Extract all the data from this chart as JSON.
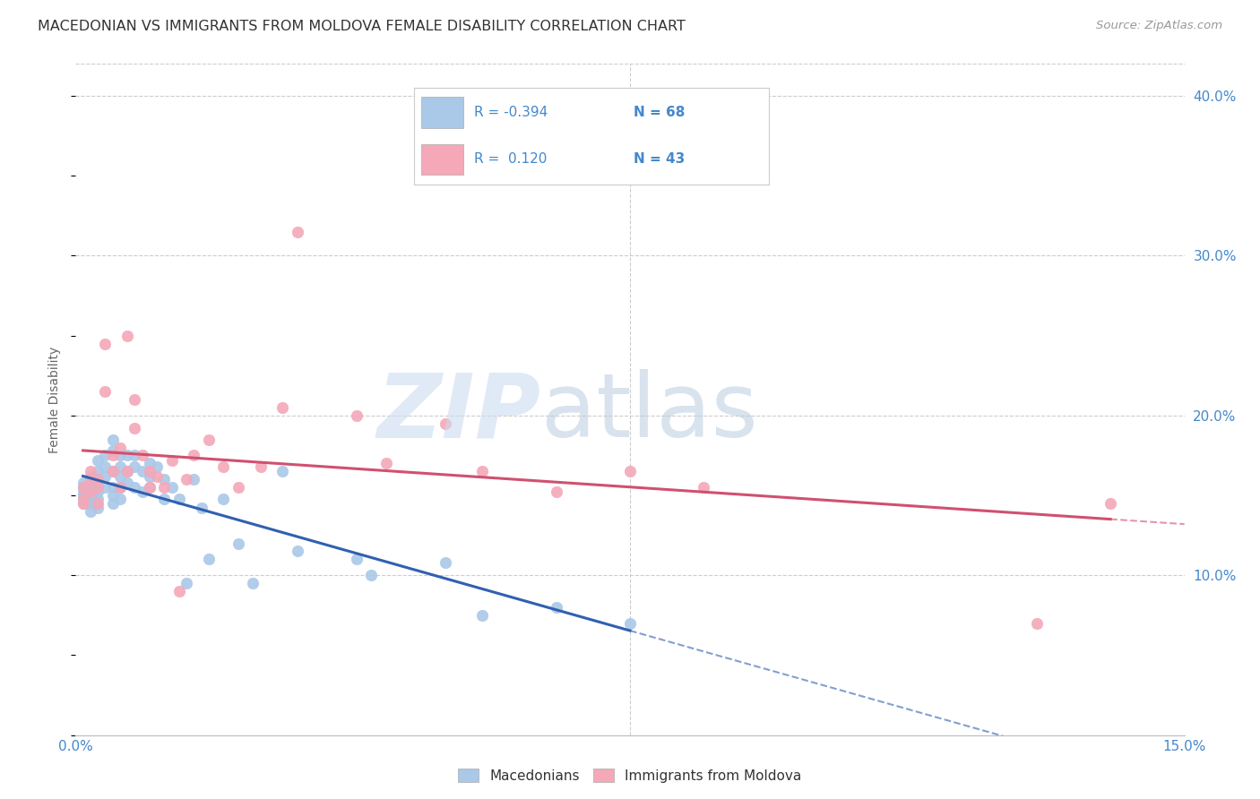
{
  "title": "MACEDONIAN VS IMMIGRANTS FROM MOLDOVA FEMALE DISABILITY CORRELATION CHART",
  "source": "Source: ZipAtlas.com",
  "ylabel": "Female Disability",
  "xlim": [
    0.0,
    0.15
  ],
  "ylim": [
    0.0,
    0.42
  ],
  "macedonian_color": "#aac8e8",
  "moldova_color": "#f4a8b8",
  "line1_color": "#3060b0",
  "line2_color": "#d05070",
  "background_color": "#ffffff",
  "grid_color": "#cccccc",
  "mac_r": "-0.394",
  "mac_n": "68",
  "mol_r": "0.120",
  "mol_n": "43",
  "macedonians_x": [
    0.001,
    0.001,
    0.001,
    0.001,
    0.001,
    0.001,
    0.002,
    0.002,
    0.002,
    0.002,
    0.002,
    0.002,
    0.002,
    0.002,
    0.002,
    0.003,
    0.003,
    0.003,
    0.003,
    0.003,
    0.003,
    0.003,
    0.004,
    0.004,
    0.004,
    0.004,
    0.005,
    0.005,
    0.005,
    0.005,
    0.005,
    0.005,
    0.006,
    0.006,
    0.006,
    0.006,
    0.006,
    0.007,
    0.007,
    0.007,
    0.008,
    0.008,
    0.008,
    0.009,
    0.009,
    0.01,
    0.01,
    0.01,
    0.011,
    0.012,
    0.012,
    0.013,
    0.014,
    0.015,
    0.016,
    0.017,
    0.018,
    0.02,
    0.022,
    0.024,
    0.028,
    0.03,
    0.038,
    0.04,
    0.05,
    0.055,
    0.065,
    0.075
  ],
  "macedonians_y": [
    0.15,
    0.148,
    0.145,
    0.155,
    0.152,
    0.158,
    0.145,
    0.148,
    0.155,
    0.16,
    0.162,
    0.152,
    0.145,
    0.14,
    0.155,
    0.165,
    0.155,
    0.148,
    0.142,
    0.158,
    0.172,
    0.152,
    0.175,
    0.168,
    0.162,
    0.155,
    0.185,
    0.178,
    0.165,
    0.155,
    0.15,
    0.145,
    0.175,
    0.168,
    0.162,
    0.155,
    0.148,
    0.175,
    0.165,
    0.158,
    0.175,
    0.168,
    0.155,
    0.165,
    0.152,
    0.17,
    0.162,
    0.155,
    0.168,
    0.16,
    0.148,
    0.155,
    0.148,
    0.095,
    0.16,
    0.142,
    0.11,
    0.148,
    0.12,
    0.095,
    0.165,
    0.115,
    0.11,
    0.1,
    0.108,
    0.075,
    0.08,
    0.07
  ],
  "moldova_x": [
    0.001,
    0.001,
    0.001,
    0.002,
    0.002,
    0.002,
    0.003,
    0.003,
    0.003,
    0.004,
    0.004,
    0.005,
    0.005,
    0.006,
    0.006,
    0.007,
    0.007,
    0.008,
    0.008,
    0.009,
    0.01,
    0.01,
    0.011,
    0.012,
    0.013,
    0.014,
    0.015,
    0.016,
    0.018,
    0.02,
    0.022,
    0.025,
    0.028,
    0.03,
    0.038,
    0.042,
    0.05,
    0.055,
    0.065,
    0.075,
    0.085,
    0.13,
    0.14
  ],
  "moldova_y": [
    0.148,
    0.155,
    0.145,
    0.16,
    0.152,
    0.165,
    0.155,
    0.145,
    0.16,
    0.245,
    0.215,
    0.175,
    0.165,
    0.18,
    0.155,
    0.25,
    0.165,
    0.21,
    0.192,
    0.175,
    0.165,
    0.155,
    0.162,
    0.155,
    0.172,
    0.09,
    0.16,
    0.175,
    0.185,
    0.168,
    0.155,
    0.168,
    0.205,
    0.315,
    0.2,
    0.17,
    0.195,
    0.165,
    0.152,
    0.165,
    0.155,
    0.07,
    0.145
  ]
}
